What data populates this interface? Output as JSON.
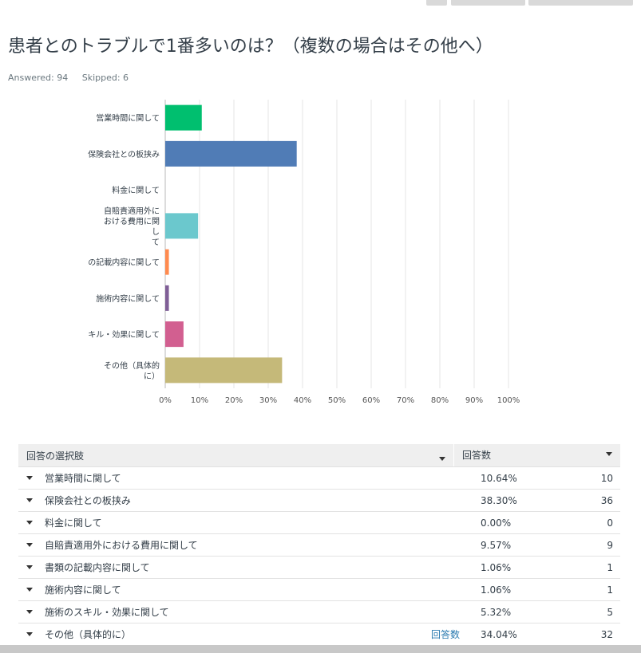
{
  "question": {
    "title": "患者とのトラブルで1番多いのは？（複数の場合はその他へ）",
    "answered": "Answered: 94",
    "skipped": "Skipped: 6"
  },
  "chart_data": {
    "type": "bar",
    "orientation": "horizontal",
    "categories": [
      [
        "営業時間に関して"
      ],
      [
        "保険会社との板挟み"
      ],
      [
        "料金に関して"
      ],
      [
        "自賠責適用外に",
        "おける費用に関",
        "し",
        "て"
      ],
      [
        "の記載内容に関して"
      ],
      [
        "施術内容に関して"
      ],
      [
        "キル・効果に関して"
      ],
      [
        "その他（具体的",
        "に）"
      ]
    ],
    "values": [
      10.64,
      38.3,
      0.0,
      9.57,
      1.06,
      1.06,
      5.32,
      34.04
    ],
    "colors": [
      "#00bf6f",
      "#507cb6",
      "#f9be00",
      "#6bc8cd",
      "#ff8b4f",
      "#7f5e96",
      "#d25f90",
      "#c5b979"
    ],
    "x_ticks": [
      "0%",
      "10%",
      "20%",
      "30%",
      "40%",
      "50%",
      "60%",
      "70%",
      "80%",
      "90%",
      "100%"
    ],
    "xlim": [
      0,
      100
    ],
    "grid": true
  },
  "table": {
    "header_choice": "回答の選択肢",
    "header_responses": "回答数",
    "rows": [
      {
        "label": "営業時間に関して",
        "pct": "10.64%",
        "count": "10",
        "link": ""
      },
      {
        "label": "保険会社との板挟み",
        "pct": "38.30%",
        "count": "36",
        "link": ""
      },
      {
        "label": "料金に関して",
        "pct": "0.00%",
        "count": "0",
        "link": ""
      },
      {
        "label": "自賠責適用外における費用に関して",
        "pct": "9.57%",
        "count": "9",
        "link": ""
      },
      {
        "label": "書類の記載内容に関して",
        "pct": "1.06%",
        "count": "1",
        "link": ""
      },
      {
        "label": "施術内容に関して",
        "pct": "1.06%",
        "count": "1",
        "link": ""
      },
      {
        "label": "施術のスキル・効果に関して",
        "pct": "5.32%",
        "count": "5",
        "link": ""
      },
      {
        "label": "その他（具体的に）",
        "pct": "34.04%",
        "count": "32",
        "link": "回答数"
      }
    ]
  }
}
